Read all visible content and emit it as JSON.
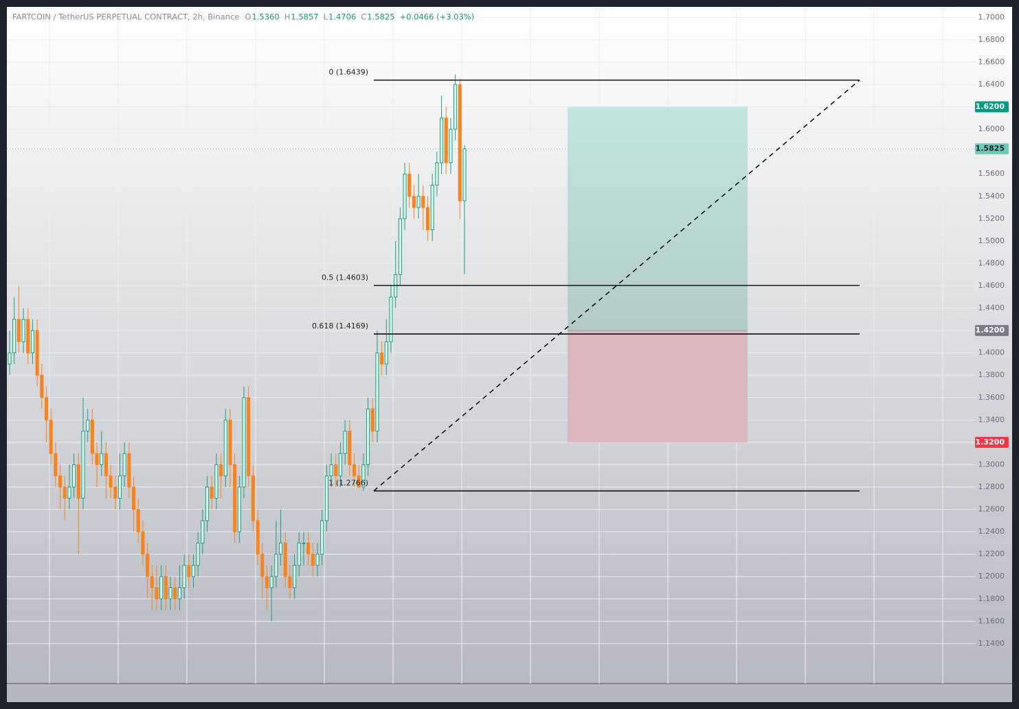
{
  "header": {
    "symbol": "FARTCOIN / TetherUS PERPETUAL CONTRACT, 2h, Binance",
    "ohlc": [
      {
        "key": "O",
        "value": "1.5360"
      },
      {
        "key": "H",
        "value": "1.5857"
      },
      {
        "key": "L",
        "value": "1.4706"
      },
      {
        "key": "C",
        "value": "1.5825"
      }
    ],
    "change": "+0.0466 (+3.03%)"
  },
  "chart_data": {
    "type": "candlestick",
    "up_color": "#1f9e80",
    "down_color": "#f7841e",
    "open": [
      1.39,
      1.4,
      1.43,
      1.41,
      1.43,
      1.4,
      1.42,
      1.38,
      1.36,
      1.34,
      1.31,
      1.29,
      1.28,
      1.27,
      1.28,
      1.3,
      1.27,
      1.33,
      1.34,
      1.31,
      1.3,
      1.31,
      1.29,
      1.28,
      1.27,
      1.29,
      1.31,
      1.28,
      1.26,
      1.24,
      1.22,
      1.2,
      1.19,
      1.18,
      1.2,
      1.18,
      1.19,
      1.18,
      1.19,
      1.21,
      1.2,
      1.21,
      1.23,
      1.25,
      1.28,
      1.27,
      1.3,
      1.29,
      1.34,
      1.3,
      1.24,
      1.28,
      1.36,
      1.29,
      1.25,
      1.22,
      1.2,
      1.19,
      1.2,
      1.22,
      1.23,
      1.2,
      1.19,
      1.21,
      1.23,
      1.23,
      1.22,
      1.21,
      1.22,
      1.25,
      1.29,
      1.3,
      1.29,
      1.31,
      1.33,
      1.3,
      1.29,
      1.28,
      1.3,
      1.35,
      1.33,
      1.4,
      1.39,
      1.41,
      1.45,
      1.47,
      1.52,
      1.56,
      1.54,
      1.53,
      1.54,
      1.53,
      1.51,
      1.55,
      1.57,
      1.61,
      1.57,
      1.6,
      1.64,
      1.536
    ],
    "high": [
      1.42,
      1.45,
      1.46,
      1.44,
      1.44,
      1.43,
      1.43,
      1.39,
      1.37,
      1.35,
      1.32,
      1.3,
      1.29,
      1.3,
      1.31,
      1.31,
      1.36,
      1.35,
      1.35,
      1.32,
      1.33,
      1.32,
      1.3,
      1.29,
      1.31,
      1.32,
      1.32,
      1.29,
      1.27,
      1.25,
      1.23,
      1.21,
      1.21,
      1.21,
      1.21,
      1.2,
      1.2,
      1.21,
      1.22,
      1.22,
      1.22,
      1.24,
      1.26,
      1.29,
      1.29,
      1.31,
      1.31,
      1.35,
      1.35,
      1.31,
      1.29,
      1.37,
      1.37,
      1.3,
      1.26,
      1.23,
      1.21,
      1.21,
      1.25,
      1.26,
      1.24,
      1.21,
      1.22,
      1.24,
      1.24,
      1.24,
      1.23,
      1.23,
      1.26,
      1.3,
      1.31,
      1.31,
      1.32,
      1.34,
      1.34,
      1.31,
      1.3,
      1.31,
      1.36,
      1.36,
      1.42,
      1.41,
      1.43,
      1.46,
      1.5,
      1.53,
      1.57,
      1.57,
      1.55,
      1.56,
      1.55,
      1.54,
      1.56,
      1.58,
      1.63,
      1.62,
      1.61,
      1.649,
      1.645,
      1.5857
    ],
    "low": [
      1.38,
      1.39,
      1.4,
      1.4,
      1.39,
      1.39,
      1.37,
      1.35,
      1.32,
      1.3,
      1.28,
      1.26,
      1.25,
      1.26,
      1.27,
      1.22,
      1.26,
      1.32,
      1.3,
      1.28,
      1.29,
      1.27,
      1.27,
      1.26,
      1.26,
      1.28,
      1.27,
      1.24,
      1.23,
      1.21,
      1.18,
      1.17,
      1.17,
      1.17,
      1.17,
      1.17,
      1.17,
      1.17,
      1.18,
      1.19,
      1.19,
      1.2,
      1.22,
      1.24,
      1.26,
      1.26,
      1.27,
      1.28,
      1.28,
      1.23,
      1.23,
      1.27,
      1.28,
      1.24,
      1.21,
      1.18,
      1.17,
      1.16,
      1.19,
      1.21,
      1.19,
      1.18,
      1.18,
      1.2,
      1.21,
      1.21,
      1.2,
      1.2,
      1.21,
      1.24,
      1.28,
      1.28,
      1.28,
      1.3,
      1.29,
      1.28,
      1.28,
      1.2766,
      1.29,
      1.32,
      1.32,
      1.38,
      1.38,
      1.4,
      1.44,
      1.46,
      1.51,
      1.53,
      1.52,
      1.52,
      1.51,
      1.5,
      1.5,
      1.54,
      1.56,
      1.56,
      1.56,
      1.59,
      1.52,
      1.4706
    ],
    "close": [
      1.4,
      1.43,
      1.41,
      1.43,
      1.4,
      1.42,
      1.38,
      1.36,
      1.34,
      1.31,
      1.29,
      1.28,
      1.27,
      1.28,
      1.3,
      1.27,
      1.33,
      1.34,
      1.31,
      1.3,
      1.31,
      1.29,
      1.28,
      1.27,
      1.29,
      1.31,
      1.28,
      1.26,
      1.24,
      1.22,
      1.2,
      1.19,
      1.18,
      1.2,
      1.18,
      1.19,
      1.18,
      1.19,
      1.21,
      1.2,
      1.21,
      1.23,
      1.25,
      1.28,
      1.27,
      1.3,
      1.29,
      1.34,
      1.3,
      1.24,
      1.28,
      1.36,
      1.29,
      1.25,
      1.22,
      1.2,
      1.19,
      1.2,
      1.22,
      1.23,
      1.2,
      1.19,
      1.21,
      1.23,
      1.23,
      1.22,
      1.21,
      1.22,
      1.25,
      1.29,
      1.3,
      1.29,
      1.31,
      1.33,
      1.3,
      1.29,
      1.28,
      1.3,
      1.35,
      1.33,
      1.4,
      1.39,
      1.41,
      1.45,
      1.47,
      1.52,
      1.56,
      1.54,
      1.53,
      1.54,
      1.53,
      1.51,
      1.55,
      1.57,
      1.61,
      1.57,
      1.6,
      1.64,
      1.536,
      1.5825
    ],
    "ylim": [
      1.1043,
      1.7094
    ],
    "yticks": [
      {
        "value": 1.14,
        "label": "1.1400"
      },
      {
        "value": 1.16,
        "label": "1.1600"
      },
      {
        "value": 1.18,
        "label": "1.1800"
      },
      {
        "value": 1.2,
        "label": "1.2000"
      },
      {
        "value": 1.22,
        "label": "1.2200"
      },
      {
        "value": 1.24,
        "label": "1.2400"
      },
      {
        "value": 1.26,
        "label": "1.2600"
      },
      {
        "value": 1.28,
        "label": "1.2800"
      },
      {
        "value": 1.3,
        "label": "1.3000"
      },
      {
        "value": 1.32,
        "label": "1.3200"
      },
      {
        "value": 1.34,
        "label": "1.3400"
      },
      {
        "value": 1.36,
        "label": "1.3600"
      },
      {
        "value": 1.38,
        "label": "1.3800"
      },
      {
        "value": 1.4,
        "label": "1.4000"
      },
      {
        "value": 1.42,
        "label": "1.4200"
      },
      {
        "value": 1.44,
        "label": "1.4400"
      },
      {
        "value": 1.46,
        "label": "1.4600"
      },
      {
        "value": 1.48,
        "label": "1.4800"
      },
      {
        "value": 1.5,
        "label": "1.5000"
      },
      {
        "value": 1.52,
        "label": "1.5200"
      },
      {
        "value": 1.54,
        "label": "1.5400"
      },
      {
        "value": 1.56,
        "label": "1.5600"
      },
      {
        "value": 1.58,
        "label": "1.5800"
      },
      {
        "value": 1.6,
        "label": "1.6000"
      },
      {
        "value": 1.62,
        "label": "1.6200"
      },
      {
        "value": 1.64,
        "label": "1.6400"
      },
      {
        "value": 1.66,
        "label": "1.6600"
      },
      {
        "value": 1.68,
        "label": "1.6800"
      },
      {
        "value": 1.7,
        "label": "1.7000"
      }
    ],
    "grid": true,
    "fib_levels": [
      {
        "value": 1.6439,
        "label": "0 (1.6439)"
      },
      {
        "value": 1.4603,
        "label": "0.5 (1.4603)"
      },
      {
        "value": 1.4169,
        "label": "0.618 (1.4169)"
      },
      {
        "value": 1.2766,
        "label": "1 (1.2766)"
      }
    ],
    "current_price": {
      "value": 1.5825,
      "label": "1.5825",
      "color": "#6fcbb7"
    },
    "position": {
      "target": {
        "value": 1.62,
        "label": "1.6200",
        "color": "#089981"
      },
      "entry": {
        "value": 1.42,
        "label": "1.4200",
        "color": "#787b86"
      },
      "stop": {
        "value": 1.32,
        "label": "1.3200",
        "color": "#f23645"
      }
    }
  }
}
